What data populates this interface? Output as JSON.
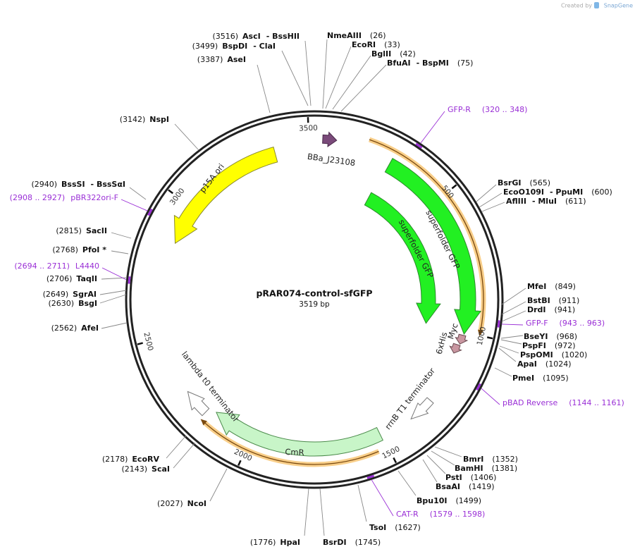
{
  "watermark": {
    "prefix": "Created by",
    "brand": "SnapGene"
  },
  "map": {
    "name": "pRAR074-control-sfGFP",
    "length": "3519 bp"
  },
  "ticks": [
    "500",
    "1000",
    "1500",
    "2000",
    "2500",
    "3000",
    "3500"
  ],
  "features": [
    {
      "label": "p15A ori"
    },
    {
      "label": "BBa_J23108"
    },
    {
      "label": "superfolder GFP"
    },
    {
      "label": "superfolder GFP"
    },
    {
      "label": "Myc"
    },
    {
      "label": "6xHis"
    },
    {
      "label": "rrnB T1 terminator"
    },
    {
      "label": "CmR"
    },
    {
      "label": "lambda t0 terminator"
    }
  ],
  "enzymes": [
    {
      "name": "AscI",
      "alt": "- BssHII",
      "position": "(3516)"
    },
    {
      "name": "BspDI",
      "alt": "- ClaI",
      "position": "(3499)"
    },
    {
      "name": "AseI",
      "position": "(3387)"
    },
    {
      "name": "NspI",
      "position": "(3142)"
    },
    {
      "name": "BssSI",
      "alt": "- BssSαI",
      "position": "(2940)"
    },
    {
      "name": "SacII",
      "position": "(2815)"
    },
    {
      "name": "PfoI *",
      "position": "(2768)"
    },
    {
      "name": "TaqII",
      "position": "(2706)"
    },
    {
      "name": "SgrAI",
      "position": "(2649)"
    },
    {
      "name": "BsgI",
      "position": "(2630)"
    },
    {
      "name": "AfeI",
      "position": "(2562)"
    },
    {
      "name": "EcoRV",
      "position": "(2178)"
    },
    {
      "name": "ScaI",
      "position": "(2143)"
    },
    {
      "name": "NcoI",
      "position": "(2027)"
    },
    {
      "name": "HpaI",
      "position": "(1776)"
    },
    {
      "name": "BsrDI",
      "position": "(1745)"
    },
    {
      "name": "TsoI",
      "position": "(1627)"
    },
    {
      "name": "Bpu10I",
      "position": "(1499)"
    },
    {
      "name": "BsaAI",
      "position": "(1419)"
    },
    {
      "name": "PstI",
      "position": "(1406)"
    },
    {
      "name": "BamHI",
      "position": "(1381)"
    },
    {
      "name": "BmrI",
      "position": "(1352)"
    },
    {
      "name": "PmeI",
      "position": "(1095)"
    },
    {
      "name": "ApaI",
      "position": "(1024)"
    },
    {
      "name": "PspOMI",
      "position": "(1020)"
    },
    {
      "name": "PspFI",
      "position": "(972)"
    },
    {
      "name": "BseYI",
      "position": "(968)"
    },
    {
      "name": "DrdI",
      "position": "(941)"
    },
    {
      "name": "BstBI",
      "position": "(911)"
    },
    {
      "name": "MfeI",
      "position": "(849)"
    },
    {
      "name": "AflIII",
      "alt": "- MluI",
      "position": "(611)"
    },
    {
      "name": "EcoO109I",
      "alt": "- PpuMI",
      "position": "(600)"
    },
    {
      "name": "BsrGI",
      "position": "(565)"
    },
    {
      "name": "BfuAI",
      "alt": "- BspMI",
      "position": "(75)"
    },
    {
      "name": "BglII",
      "position": "(42)"
    },
    {
      "name": "EcoRI",
      "position": "(33)"
    },
    {
      "name": "NmeAIII",
      "position": "(26)"
    }
  ],
  "primers": [
    {
      "name": "GFP-R",
      "range": "(320 .. 348)"
    },
    {
      "name": "GFP-F",
      "range": "(943 .. 963)"
    },
    {
      "name": "pBAD Reverse",
      "range": "(1144 .. 1161)"
    },
    {
      "name": "CAT-R",
      "range": "(1579 .. 1598)"
    },
    {
      "name": "L4440",
      "range": "(2694 .. 2711)"
    },
    {
      "name": "pBR322ori-F",
      "range": "(2908 .. 2927)"
    }
  ]
}
